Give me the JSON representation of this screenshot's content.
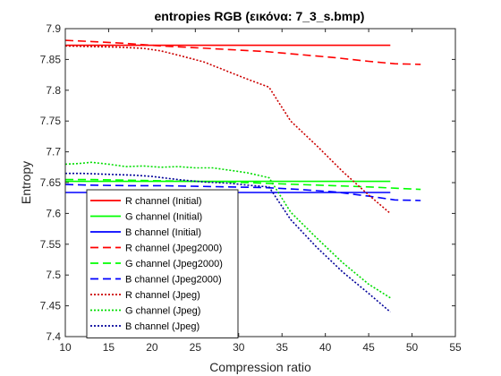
{
  "chart_data": {
    "type": "line",
    "title": "entropies RGB (εικόνα: 7_3_s.bmp)",
    "xlabel": "Compression ratio",
    "ylabel": "Entropy",
    "xlim": [
      10,
      55
    ],
    "ylim": [
      7.4,
      7.9
    ],
    "xticks": [
      10,
      15,
      20,
      25,
      30,
      35,
      40,
      45,
      50,
      55
    ],
    "yticks": [
      7.4,
      7.45,
      7.5,
      7.55,
      7.6,
      7.65,
      7.7,
      7.75,
      7.8,
      7.85,
      7.9
    ],
    "grid": false,
    "legend_position": "bottom-left",
    "series": [
      {
        "name": "R channel (Initial)",
        "color": "#ff0000",
        "style": "solid",
        "x": [
          10,
          47.5
        ],
        "y": [
          7.873,
          7.873
        ]
      },
      {
        "name": "G channel (Initial)",
        "color": "#00ff00",
        "style": "solid",
        "x": [
          10,
          47.5
        ],
        "y": [
          7.652,
          7.652
        ]
      },
      {
        "name": "B channel (Initial)",
        "color": "#0000ff",
        "style": "solid",
        "x": [
          10,
          47.5
        ],
        "y": [
          7.634,
          7.634
        ]
      },
      {
        "name": "R channel (Jpeg2000)",
        "color": "#ff0000",
        "style": "dashed",
        "x": [
          10,
          13,
          17,
          21,
          25,
          29,
          33,
          37,
          41,
          45,
          48,
          51
        ],
        "y": [
          7.881,
          7.879,
          7.876,
          7.872,
          7.869,
          7.866,
          7.863,
          7.858,
          7.853,
          7.847,
          7.843,
          7.842
        ]
      },
      {
        "name": "G channel (Jpeg2000)",
        "color": "#00ff00",
        "style": "dashed",
        "x": [
          10,
          13,
          17,
          21,
          25,
          29,
          33,
          37,
          41,
          45,
          48,
          51
        ],
        "y": [
          7.655,
          7.655,
          7.654,
          7.653,
          7.652,
          7.651,
          7.649,
          7.647,
          7.645,
          7.643,
          7.641,
          7.639
        ]
      },
      {
        "name": "B channel (Jpeg2000)",
        "color": "#0000ff",
        "style": "dashed",
        "x": [
          10,
          13,
          17,
          21,
          25,
          29,
          33,
          37,
          41,
          45,
          48,
          51
        ],
        "y": [
          7.647,
          7.646,
          7.645,
          7.645,
          7.644,
          7.643,
          7.642,
          7.639,
          7.635,
          7.628,
          7.622,
          7.621
        ]
      },
      {
        "name": "R channel (Jpeg)",
        "color": "#cc0000",
        "style": "dotted",
        "x": [
          10,
          13,
          16,
          19,
          21,
          23,
          26,
          29,
          31,
          33.5,
          36,
          39,
          42,
          45,
          47.5
        ],
        "y": [
          7.872,
          7.871,
          7.87,
          7.868,
          7.864,
          7.857,
          7.846,
          7.829,
          7.818,
          7.805,
          7.75,
          7.71,
          7.668,
          7.63,
          7.6
        ]
      },
      {
        "name": "G channel (Jpeg)",
        "color": "#00dd00",
        "style": "dotted",
        "x": [
          10,
          11.5,
          13,
          15,
          17,
          19,
          21,
          23,
          25,
          27,
          29,
          31,
          33.5,
          36,
          39,
          42,
          45,
          47.5
        ],
        "y": [
          7.68,
          7.681,
          7.683,
          7.68,
          7.676,
          7.677,
          7.675,
          7.676,
          7.674,
          7.674,
          7.67,
          7.666,
          7.658,
          7.602,
          7.56,
          7.52,
          7.485,
          7.463
        ]
      },
      {
        "name": "B channel (Jpeg)",
        "color": "#000099",
        "style": "dotted",
        "x": [
          10,
          12,
          14,
          16,
          18,
          20,
          23,
          26,
          29,
          31,
          33.5,
          36,
          39,
          42,
          45,
          47.5
        ],
        "y": [
          7.665,
          7.665,
          7.664,
          7.663,
          7.662,
          7.66,
          7.655,
          7.651,
          7.649,
          7.646,
          7.643,
          7.59,
          7.545,
          7.505,
          7.47,
          7.44
        ]
      }
    ]
  }
}
